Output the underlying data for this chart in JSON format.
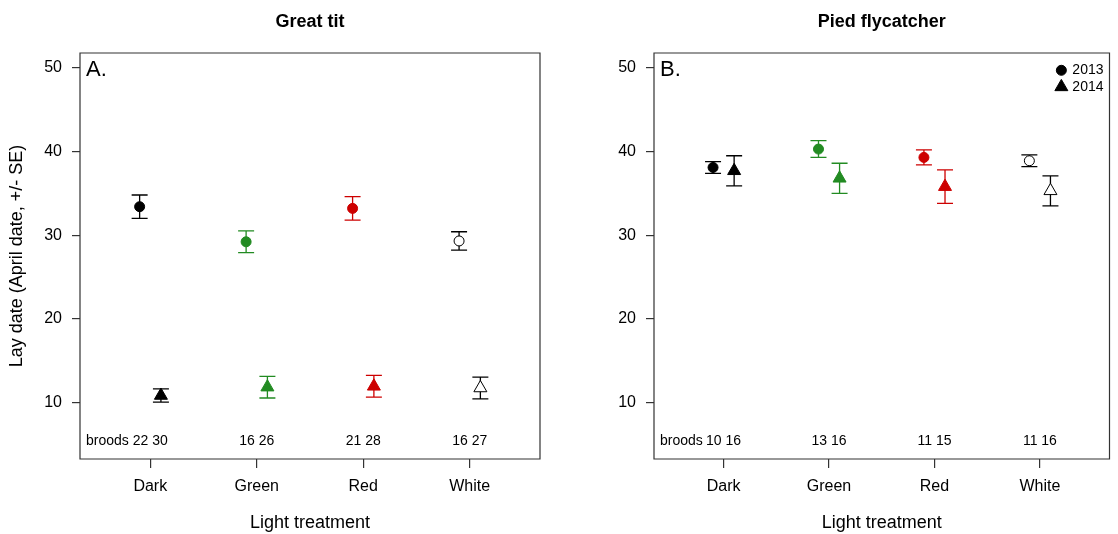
{
  "chart_data": [
    {
      "type": "scatter",
      "title": "Great tit",
      "xlabel": "Light treatment",
      "ylabel": "Lay date (April date, +/- SE)",
      "categories": [
        "Dark",
        "Green",
        "Red",
        "White"
      ],
      "series": [
        {
          "color": "#000000",
          "colors": [
            "#000000",
            "#228b22",
            "#cd0000",
            "#ffffff"
          ],
          "marker": "circle",
          "values": [
            33.4,
            29.2,
            33.2,
            29.3
          ],
          "errors": [
            1.4,
            1.3,
            1.4,
            1.1
          ]
        },
        {
          "color": "#000000",
          "colors": [
            "#000000",
            "#228b22",
            "#cd0000",
            "#ffffff"
          ],
          "marker": "triangle",
          "values": [
            10.8,
            11.8,
            11.9,
            11.7
          ],
          "errors": [
            0.8,
            1.3,
            1.3,
            1.3
          ]
        }
      ],
      "ylim": [
        3.2,
        51.8
      ],
      "yticks": [
        10,
        20,
        30,
        40,
        50
      ],
      "annotations": [
        "A.",
        "broods",
        "22 30",
        "16 26",
        "21 28",
        "16 27"
      ]
    },
    {
      "type": "scatter",
      "title": "Pied flycatcher",
      "xlabel": "Light treatment",
      "categories": [
        "Dark",
        "Green",
        "Red",
        "White"
      ],
      "series": [
        {
          "name": "2013",
          "color": "#000000",
          "colors": [
            "#000000",
            "#228b22",
            "#cd0000",
            "#ffffff"
          ],
          "marker": "circle",
          "values": [
            38.1,
            40.3,
            39.3,
            38.9
          ],
          "errors": [
            0.7,
            1.0,
            0.9,
            0.7
          ]
        },
        {
          "name": "2014",
          "color": "#000000",
          "colors": [
            "#000000",
            "#228b22",
            "#cd0000",
            "#ffffff"
          ],
          "marker": "triangle",
          "values": [
            37.7,
            36.8,
            35.8,
            35.3
          ],
          "errors": [
            1.8,
            1.8,
            2.0,
            1.8
          ]
        }
      ],
      "ylim": [
        3.2,
        51.8
      ],
      "yticks": [
        10,
        20,
        30,
        40,
        50
      ],
      "legend": "top right",
      "annotations": [
        "B.",
        "broods",
        "10 16",
        "13 16",
        "11 15",
        "11 16"
      ]
    }
  ]
}
